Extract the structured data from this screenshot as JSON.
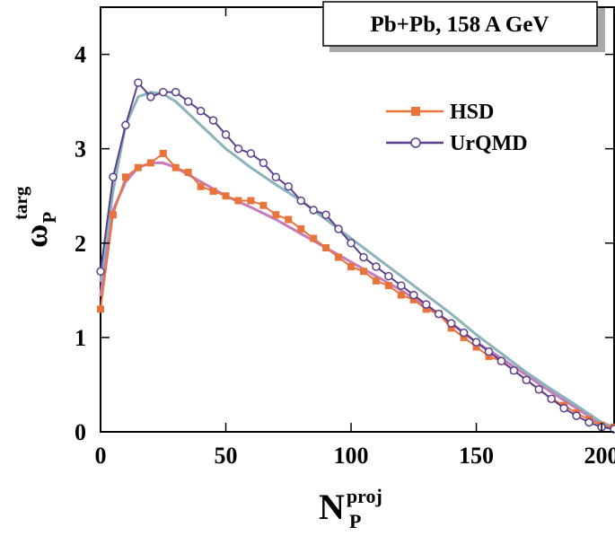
{
  "chart_data": {
    "type": "line",
    "title": "Pb+Pb, 158 A GeV",
    "xlabel": {
      "base": "N",
      "sup": "proj",
      "sub": "P"
    },
    "ylabel": {
      "base": "ω",
      "sup": "targ",
      "sub": "P"
    },
    "xlim": [
      0,
      205
    ],
    "ylim": [
      0,
      4.5
    ],
    "x_ticks": [
      0,
      50,
      100,
      150,
      200
    ],
    "y_ticks": [
      0,
      1,
      2,
      3,
      4
    ],
    "grid": false,
    "legend_position": "top-right",
    "series": [
      {
        "name": "HSD",
        "color": "#e8743b",
        "marker": "square",
        "x": [
          0,
          5,
          10,
          15,
          20,
          25,
          30,
          35,
          40,
          45,
          50,
          55,
          60,
          65,
          70,
          75,
          80,
          85,
          90,
          95,
          100,
          105,
          110,
          115,
          120,
          125,
          130,
          135,
          140,
          145,
          150,
          155,
          160,
          165,
          170,
          175,
          180,
          185,
          190,
          195,
          200,
          205
        ],
        "y": [
          1.3,
          2.3,
          2.7,
          2.8,
          2.85,
          2.95,
          2.8,
          2.75,
          2.6,
          2.55,
          2.5,
          2.45,
          2.45,
          2.4,
          2.3,
          2.25,
          2.15,
          2.05,
          1.95,
          1.85,
          1.75,
          1.7,
          1.6,
          1.55,
          1.45,
          1.4,
          1.3,
          1.25,
          1.1,
          1.0,
          0.9,
          0.8,
          0.75,
          0.65,
          0.55,
          0.45,
          0.35,
          0.28,
          0.2,
          0.13,
          0.07,
          0.05
        ]
      },
      {
        "name": "UrQMD",
        "color": "#5b3f8c",
        "marker": "circle",
        "x": [
          0,
          5,
          10,
          15,
          20,
          25,
          30,
          35,
          40,
          45,
          50,
          55,
          60,
          65,
          70,
          75,
          80,
          85,
          90,
          95,
          100,
          105,
          110,
          115,
          120,
          125,
          130,
          135,
          140,
          145,
          150,
          155,
          160,
          165,
          170,
          175,
          180,
          185,
          190,
          195,
          200,
          205
        ],
        "y": [
          1.7,
          2.7,
          3.25,
          3.7,
          3.55,
          3.6,
          3.6,
          3.5,
          3.4,
          3.3,
          3.15,
          3.0,
          2.95,
          2.85,
          2.7,
          2.6,
          2.45,
          2.35,
          2.3,
          2.15,
          2.0,
          1.85,
          1.75,
          1.65,
          1.55,
          1.45,
          1.35,
          1.25,
          1.15,
          1.05,
          0.95,
          0.85,
          0.75,
          0.65,
          0.55,
          0.45,
          0.35,
          0.25,
          0.17,
          0.1,
          0.05,
          0.03
        ]
      }
    ],
    "fits": [
      {
        "for": "HSD",
        "color": "#c77bbd",
        "x": [
          0,
          5,
          10,
          15,
          20,
          25,
          30,
          40,
          50,
          60,
          70,
          80,
          90,
          100,
          110,
          120,
          130,
          140,
          150,
          160,
          170,
          180,
          190,
          200,
          205
        ],
        "y": [
          1.45,
          2.35,
          2.65,
          2.8,
          2.85,
          2.85,
          2.8,
          2.65,
          2.5,
          2.38,
          2.25,
          2.1,
          1.95,
          1.8,
          1.65,
          1.5,
          1.33,
          1.15,
          0.95,
          0.78,
          0.6,
          0.42,
          0.25,
          0.08,
          0.03
        ]
      },
      {
        "for": "UrQMD",
        "color": "#8ab3bc",
        "x": [
          0,
          5,
          10,
          15,
          20,
          25,
          30,
          40,
          50,
          60,
          70,
          80,
          90,
          100,
          110,
          120,
          130,
          140,
          150,
          160,
          170,
          180,
          190,
          200,
          205
        ],
        "y": [
          1.6,
          2.55,
          3.25,
          3.55,
          3.6,
          3.58,
          3.5,
          3.25,
          3.0,
          2.8,
          2.62,
          2.45,
          2.25,
          2.05,
          1.85,
          1.65,
          1.45,
          1.25,
          1.03,
          0.83,
          0.63,
          0.45,
          0.28,
          0.1,
          0.05
        ]
      }
    ]
  }
}
